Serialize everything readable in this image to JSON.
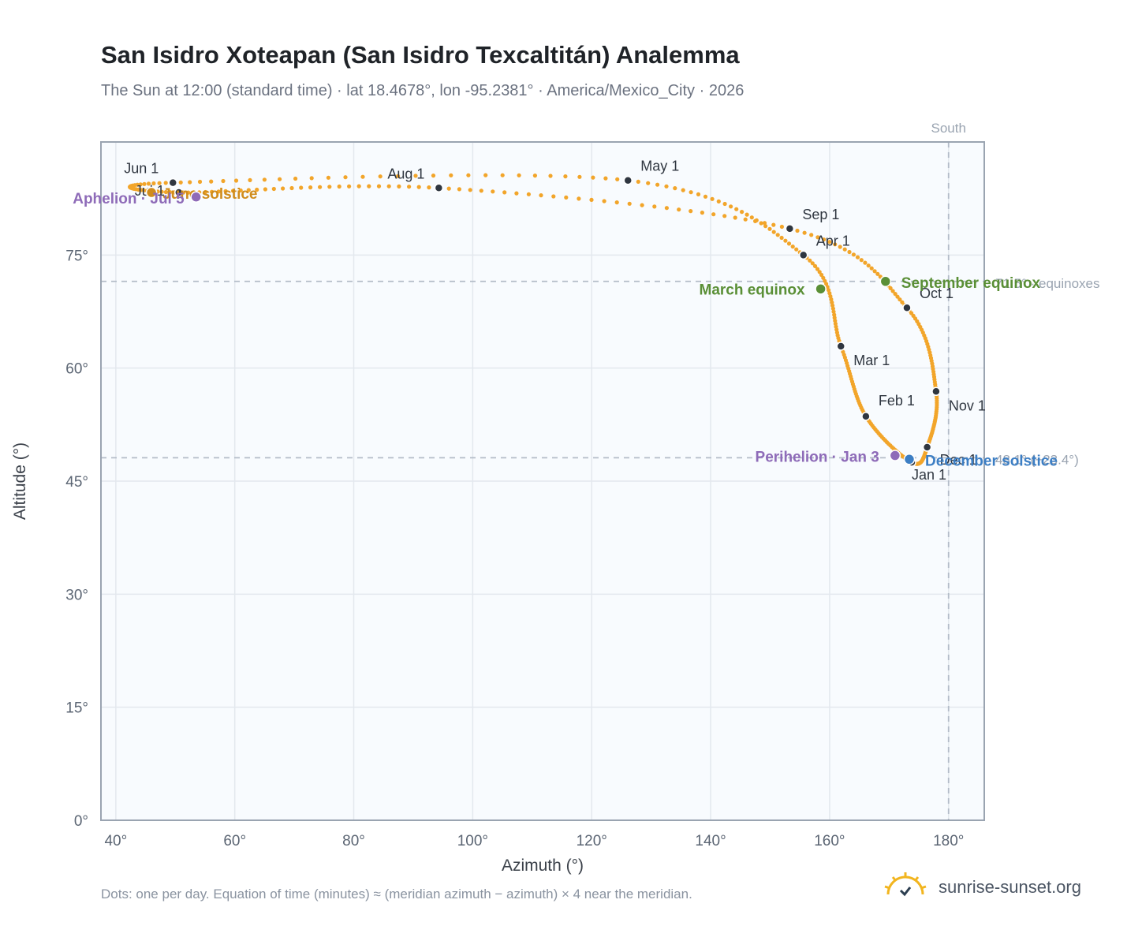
{
  "header": {
    "title": "San Isidro Xoteapan (San Isidro Texcaltitán) Analemma",
    "subtitle": "The Sun at 12:00 (standard time) · lat 18.4678°, lon -95.2381° · America/Mexico_City · 2026"
  },
  "footer": {
    "note": "Dots: one per day. Equation of time (minutes) ≈ (meridian azimuth − azimuth) × 4 near the meridian.",
    "brand": "sunrise-sunset.org"
  },
  "colors": {
    "curve": "#f2a52a",
    "month_marker": "#2f3640",
    "equinox": "#5a8f36",
    "solstice_dec": "#3c7ec4",
    "solstice_jun": "#d08c1c",
    "apsis": "#8e6bb8",
    "grid": "#e3e8ee",
    "plot_bg": "#f8fbfe",
    "axis": "#9aa4b1",
    "refline": "#b3bcc8"
  },
  "chart_data": {
    "type": "scatter",
    "xlabel": "Azimuth (°)",
    "ylabel": "Altitude (°)",
    "xlim": [
      37.5,
      186
    ],
    "ylim": [
      0,
      90
    ],
    "xticks": [
      "40°",
      "60°",
      "80°",
      "100°",
      "120°",
      "140°",
      "160°",
      "180°"
    ],
    "yticks": [
      "0°",
      "15°",
      "30°",
      "45°",
      "60°",
      "75°"
    ],
    "grid": true,
    "meridian": {
      "azimuth": 180,
      "label": "South"
    },
    "reference_lines": [
      {
        "altitude": 71.5,
        "label": "71.5° · equinoxes"
      },
      {
        "altitude": 48.1,
        "label": "48.1° (−23.4°)"
      }
    ],
    "month_markers": [
      {
        "label": "Jan 1",
        "azimuth": 173.8,
        "altitude": 47.5
      },
      {
        "label": "Feb 1",
        "azimuth": 166.1,
        "altitude": 53.6
      },
      {
        "label": "Mar 1",
        "azimuth": 161.9,
        "altitude": 62.9
      },
      {
        "label": "Apr 1",
        "azimuth": 155.6,
        "altitude": 75.0
      },
      {
        "label": "May 1",
        "azimuth": 126.1,
        "altitude": 84.9
      },
      {
        "label": "Jun 1",
        "azimuth": 49.6,
        "altitude": 84.6
      },
      {
        "label": "Jul 1",
        "azimuth": 50.6,
        "altitude": 83.3
      },
      {
        "label": "Aug 1",
        "azimuth": 94.3,
        "altitude": 83.9
      },
      {
        "label": "Sep 1",
        "azimuth": 153.3,
        "altitude": 78.5
      },
      {
        "label": "Oct 1",
        "azimuth": 173.0,
        "altitude": 68.0
      },
      {
        "label": "Nov 1",
        "azimuth": 177.9,
        "altitude": 56.9
      },
      {
        "label": "Dec 1",
        "azimuth": 176.4,
        "altitude": 49.5
      }
    ],
    "events": [
      {
        "label": "March equinox",
        "azimuth": 158.5,
        "altitude": 70.5,
        "kind": "equinox"
      },
      {
        "label": "September equinox",
        "azimuth": 169.4,
        "altitude": 71.5,
        "kind": "equinox"
      },
      {
        "label": "December solstice",
        "azimuth": 173.4,
        "altitude": 47.9,
        "kind": "solstice_dec"
      },
      {
        "label": "June solstice",
        "azimuth": 46.0,
        "altitude": 83.3,
        "kind": "solstice_jun"
      },
      {
        "label": "Perihelion · Jan 3",
        "azimuth": 171.0,
        "altitude": 48.4,
        "kind": "apsis"
      },
      {
        "label": "Aphelion · Jul 5",
        "azimuth": 53.5,
        "altitude": 82.7,
        "kind": "apsis"
      }
    ]
  }
}
